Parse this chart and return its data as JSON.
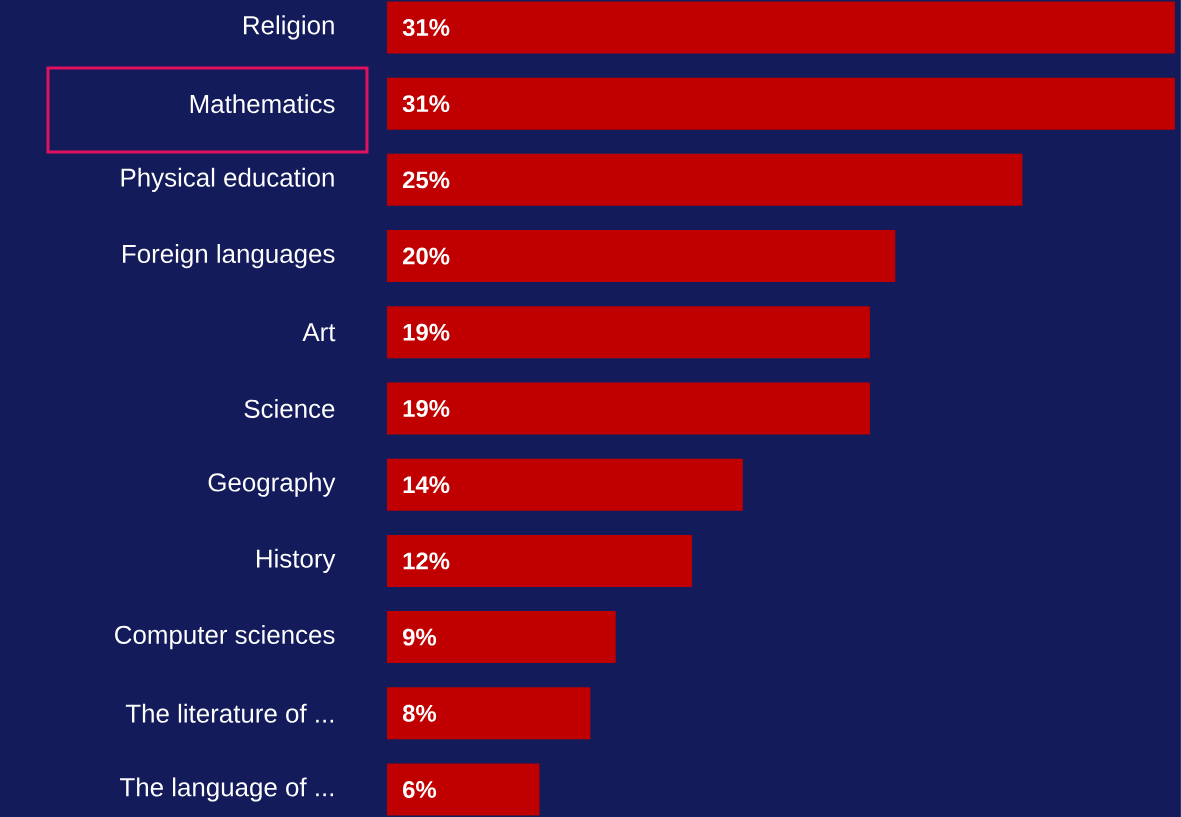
{
  "chart_data": {
    "type": "bar",
    "orientation": "horizontal",
    "categories": [
      "Religion",
      "Mathematics",
      "Physical education",
      "Foreign languages",
      "Art",
      "Science",
      "Geography",
      "History",
      "Computer sciences",
      "The literature of ...",
      "The language of ..."
    ],
    "values": [
      31,
      31,
      25,
      20,
      19,
      19,
      14,
      12,
      9,
      8,
      6
    ],
    "value_labels": [
      "31%",
      "31%",
      "25%",
      "20%",
      "19%",
      "19%",
      "14%",
      "12%",
      "9%",
      "8%",
      "6%"
    ],
    "color": "#c00000"
  }
}
